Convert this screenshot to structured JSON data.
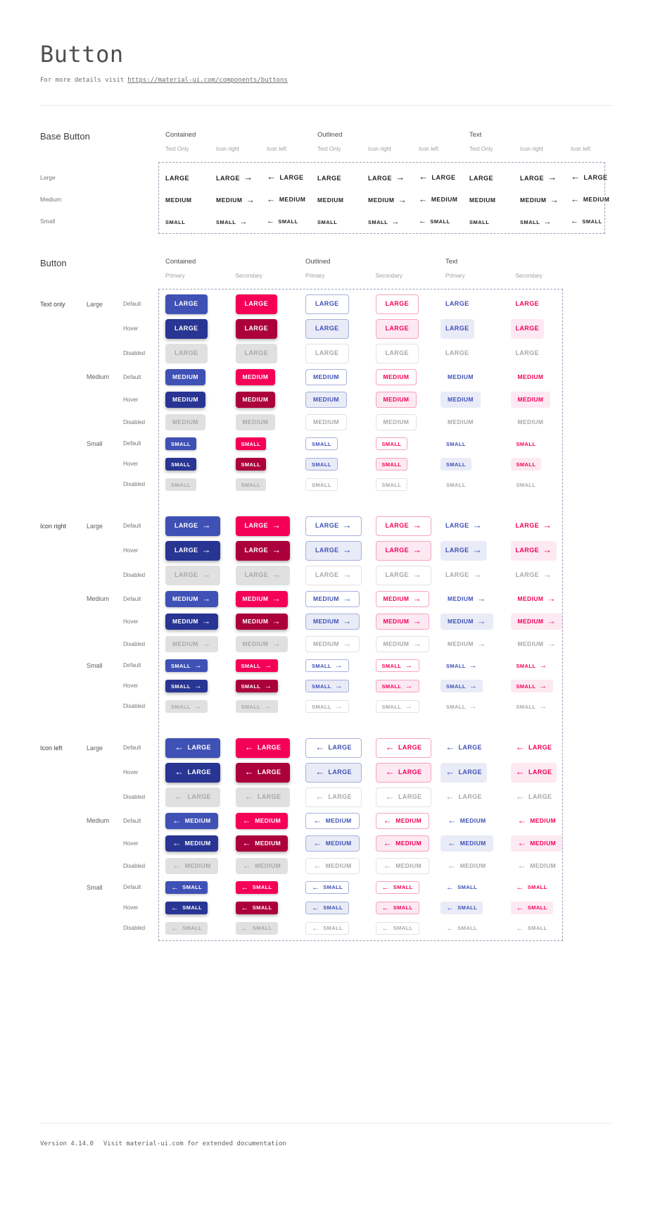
{
  "page": {
    "title": "Button",
    "subtitle_prefix": "For more details visit",
    "subtitle_link": "https://material-ui.com/components/buttons",
    "footer_version": "Version 4.14.0",
    "footer_note": "Visit material-ui.com for extended documentation"
  },
  "colors": {
    "primary": "#3f51b5",
    "primary_hover": "#283593",
    "primary_outline": "#a7b0dd",
    "primary_tint": "#e9ebf7",
    "secondary": "#f50057",
    "secondary_hover": "#ab003c",
    "secondary_outline": "#f9a2c0",
    "secondary_tint": "#fde9f1",
    "disabled_bg": "#e0e0e0",
    "disabled_text": "#a8a8a8",
    "disabled_border": "#e2e2e2",
    "base_text": "#1f1f1f",
    "dashed_border": "#9aa0b8"
  },
  "icons": {
    "arrow-right": "→",
    "arrow-left": "←"
  },
  "base_section": {
    "heading": "Base Button",
    "groups": [
      {
        "label": "Contained"
      },
      {
        "label": "Outlined"
      },
      {
        "label": "Text"
      }
    ],
    "subcolumns": [
      {
        "label": "Text Only",
        "icon": "none"
      },
      {
        "label": "Icon right",
        "icon": "arrow-right"
      },
      {
        "label": "Icon left",
        "icon": "arrow-left"
      }
    ],
    "rows": [
      {
        "label": "Large",
        "size": "large",
        "text": "LARGE"
      },
      {
        "label": "Medium",
        "size": "medium",
        "text": "MEDIUM"
      },
      {
        "label": "Small",
        "size": "small",
        "text": "SMALL"
      }
    ]
  },
  "button_section": {
    "heading": "Button",
    "groups": [
      {
        "label": "Contained",
        "variant": "contained"
      },
      {
        "label": "Outlined",
        "variant": "outlined"
      },
      {
        "label": "Text",
        "variant": "text"
      }
    ],
    "subcolumns": [
      {
        "label": "Primary",
        "color": "primary"
      },
      {
        "label": "Secondary",
        "color": "secondary"
      }
    ],
    "icon_groups": [
      {
        "label": "Text only",
        "icon": "none"
      },
      {
        "label": "Icon right",
        "icon": "arrow-right"
      },
      {
        "label": "Icon left",
        "icon": "arrow-left"
      }
    ],
    "sizes": [
      {
        "label": "Large",
        "size": "large",
        "text": "LARGE"
      },
      {
        "label": "Medium",
        "size": "medium",
        "text": "MEDIUM"
      },
      {
        "label": "Small",
        "size": "small",
        "text": "SMALL"
      }
    ],
    "states": [
      {
        "label": "Default",
        "state": "default"
      },
      {
        "label": "Hover",
        "state": "hover"
      },
      {
        "label": "Disabled",
        "state": "disabled"
      }
    ]
  }
}
